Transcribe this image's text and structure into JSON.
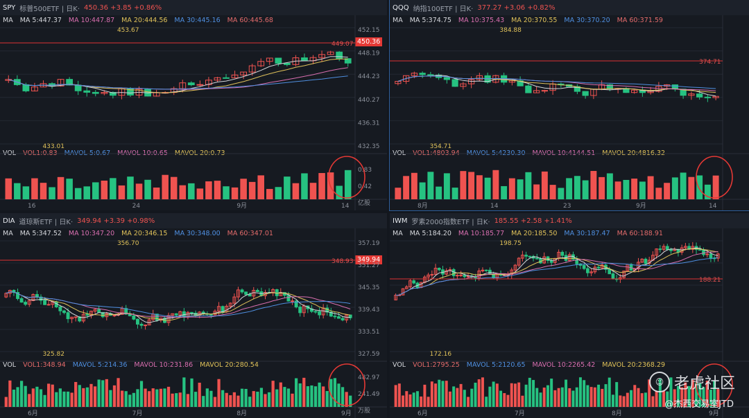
{
  "watermark": {
    "brand": "老虎社区",
    "author": "@杰西交易室JTD"
  },
  "panels": [
    {
      "id": "spy",
      "header": {
        "symbol": "SPY",
        "name": "标普500ETF | 日K·",
        "price": "450.36 +3.85 +0.86%"
      },
      "ma_labels": [
        "MA",
        "MA 5:447.37",
        "MA 10:447.87",
        "MA 20:444.56",
        "MA 30:445.16",
        "MA 60:445.68"
      ],
      "price_axis": [
        "452.15",
        "448.19",
        "444.23",
        "440.27",
        "436.31",
        "432.35"
      ],
      "last_price": "450.36",
      "ref_price": "449.07",
      "high_label": "453.67",
      "low_label": "433.01",
      "vol_labels": [
        "VOL",
        "VOL1:0.83",
        "MAVOL 5:0.67",
        "MAVOL 10:0.65",
        "MAVOL 20:0.73"
      ],
      "vol_axis": [
        "0.83",
        "0.42",
        "亿股"
      ],
      "date_axis": [
        "16",
        "24",
        "9月",
        "14"
      ]
    },
    {
      "id": "qqq",
      "header": {
        "symbol": "QQQ",
        "name": "纳指100ETF | 日K·",
        "price": "377.27 +3.06 +0.82%"
      },
      "ma_labels": [
        "MA",
        "MA 5:374.75",
        "MA 10:375.43",
        "MA 20:370.55",
        "MA 30:370.20",
        "MA 60:371.59"
      ],
      "price_axis": [],
      "last_price": "",
      "ref_price": "374.71",
      "high_label": "384.88",
      "low_label": "354.71",
      "vol_labels": [
        "VOL",
        "VOL1:4803.94",
        "MAVOL 5:4230.30",
        "MAVOL 10:4144.51",
        "MAVOL 20:4816.32"
      ],
      "vol_axis": [],
      "date_axis": [
        "8月",
        "14",
        "23",
        "9月",
        "14"
      ]
    },
    {
      "id": "dia",
      "header": {
        "symbol": "DIA",
        "name": "道琼斯ETF | 日K·",
        "price": "349.94 +3.39 +0.98%"
      },
      "ma_labels": [
        "MA",
        "MA 5:347.52",
        "MA 10:347.20",
        "MA 20:346.15",
        "MA 30:348.00",
        "MA 60:347.01"
      ],
      "price_axis": [
        "357.19",
        "351.27",
        "345.35",
        "339.43",
        "333.51",
        "327.59"
      ],
      "last_price": "349.94",
      "ref_price": "348.93",
      "high_label": "356.70",
      "low_label": "325.82",
      "vol_labels": [
        "VOL",
        "VOL1:348.94",
        "MAVOL 5:214.36",
        "MAVOL 10:231.86",
        "MAVOL 20:280.54"
      ],
      "vol_axis": [
        "482.97",
        "241.49",
        "万股"
      ],
      "date_axis": [
        "6月",
        "7月",
        "8月",
        "9月"
      ]
    },
    {
      "id": "iwm",
      "header": {
        "symbol": "IWM",
        "name": "罗素2000指数ETF | 日K·",
        "price": "185.55 +2.58 +1.41%"
      },
      "ma_labels": [
        "MA",
        "MA 5:184.20",
        "MA 10:185.77",
        "MA 20:185.50",
        "MA 30:187.47",
        "MA 60:188.91"
      ],
      "price_axis": [],
      "last_price": "",
      "ref_price": "188.21",
      "high_label": "198.75",
      "low_label": "172.16",
      "vol_labels": [
        "VOL",
        "VOL1:2795.25",
        "MAVOL 5:2120.65",
        "MAVOL 10:2265.42",
        "MAVOL 20:2368.29"
      ],
      "vol_axis": [],
      "date_axis": [
        "6月",
        "7月",
        "8月",
        "9月"
      ]
    }
  ],
  "colors": {
    "up": "#ef5350",
    "down": "#26c281",
    "ma5": "#d5d7dc",
    "ma10": "#e0c25a",
    "ma20": "#d96fb0",
    "ma30": "#4f8fe0",
    "ma60": "#e36b6b"
  }
}
